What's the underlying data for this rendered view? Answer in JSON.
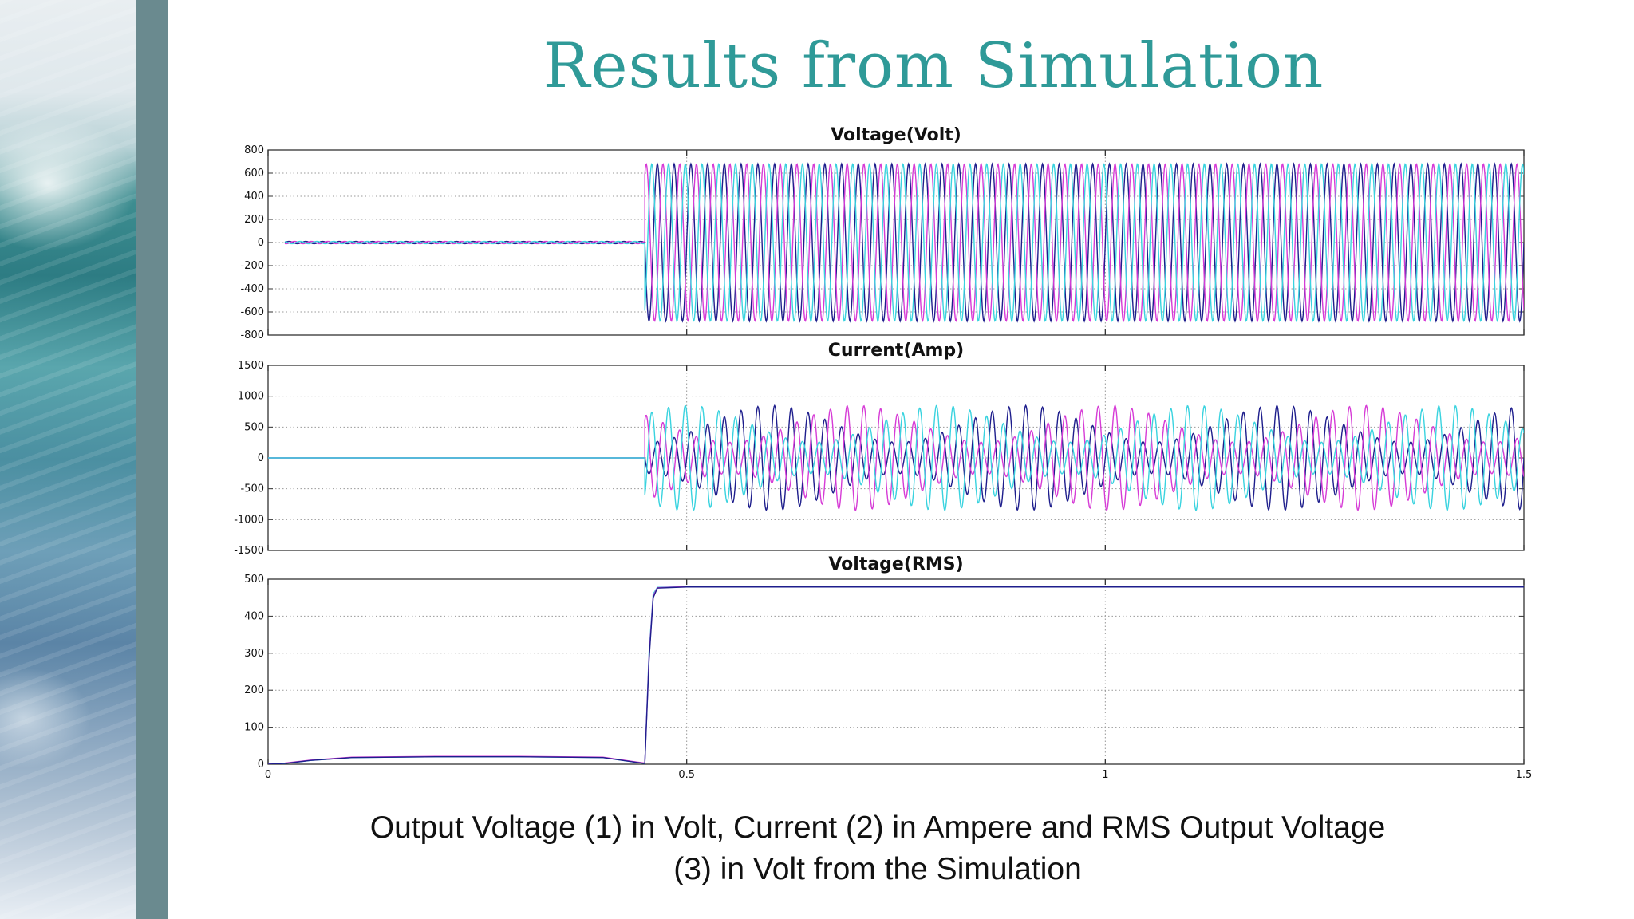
{
  "slide": {
    "title": "Results from Simulation",
    "caption_line1": "Output Voltage (1) in Volt, Current (2) in Ampere and RMS Output Voltage",
    "caption_line2": "(3) in Volt from the Simulation"
  },
  "colors": {
    "title": "#2f9a98",
    "phase_a": "#1e1e8c",
    "phase_b": "#d63bd6",
    "phase_c": "#39d3df"
  },
  "chart_data": [
    {
      "type": "line",
      "title": "Voltage(Volt)",
      "xlim": [
        0,
        1.5
      ],
      "ylim": [
        -800,
        800
      ],
      "x_ticks": [
        0,
        0.5,
        1,
        1.5
      ],
      "y_ticks": [
        800,
        600,
        400,
        200,
        0,
        -200,
        -400,
        -600,
        -800
      ],
      "y_tick_labels": [
        "800",
        "600",
        "400",
        "200",
        "0",
        "-200",
        "-400",
        "-600",
        "-800"
      ],
      "x_grid": [
        0.5,
        1
      ],
      "grid": true,
      "series": [
        {
          "color": "#1e1e8c",
          "segments": [
            {
              "x_start": 0.02,
              "x_end": 0.45,
              "amplitude": 10,
              "frequency": 50,
              "phase_deg": 0
            },
            {
              "x_start": 0.45,
              "x_end": 1.5,
              "amplitude": 680,
              "frequency": 50,
              "phase_deg": 0
            }
          ]
        },
        {
          "color": "#d63bd6",
          "segments": [
            {
              "x_start": 0.02,
              "x_end": 0.45,
              "amplitude": 10,
              "frequency": 50,
              "phase_deg": -120
            },
            {
              "x_start": 0.45,
              "x_end": 1.5,
              "amplitude": 680,
              "frequency": 50,
              "phase_deg": -120
            }
          ]
        },
        {
          "color": "#39d3df",
          "segments": [
            {
              "x_start": 0.02,
              "x_end": 0.45,
              "amplitude": 10,
              "frequency": 50,
              "phase_deg": 120
            },
            {
              "x_start": 0.45,
              "x_end": 1.5,
              "amplitude": 680,
              "frequency": 50,
              "phase_deg": 120
            }
          ]
        }
      ]
    },
    {
      "type": "line",
      "title": "Current(Amp)",
      "xlim": [
        0,
        1.5
      ],
      "ylim": [
        -1500,
        1500
      ],
      "x_ticks": [
        0,
        0.5,
        1,
        1.5
      ],
      "y_ticks": [
        1500,
        1000,
        500,
        0,
        -500,
        -1000,
        -1500
      ],
      "y_tick_labels": [
        "1500",
        "1000",
        "500",
        "0",
        "-500",
        "-1000",
        "-1500"
      ],
      "x_grid": [
        0.5,
        1
      ],
      "grid": true,
      "series": [
        {
          "color": "#1e1e8c",
          "segments": [
            {
              "x_start": 0,
              "x_end": 0.45,
              "amplitude": 0,
              "frequency": 50,
              "phase_deg": 0
            },
            {
              "x_start": 0.45,
              "x_end": 1.5,
              "amplitude": 850,
              "frequency": 50,
              "phase_deg": 0,
              "beat_frequency": 3.3,
              "beat_depth": 0.7
            }
          ]
        },
        {
          "color": "#d63bd6",
          "segments": [
            {
              "x_start": 0,
              "x_end": 0.45,
              "amplitude": 0,
              "frequency": 50,
              "phase_deg": -120
            },
            {
              "x_start": 0.45,
              "x_end": 1.5,
              "amplitude": 850,
              "frequency": 50,
              "phase_deg": -120,
              "beat_frequency": 3.3,
              "beat_depth": 0.7
            }
          ]
        },
        {
          "color": "#39d3df",
          "segments": [
            {
              "x_start": 0,
              "x_end": 0.45,
              "amplitude": 0,
              "frequency": 50,
              "phase_deg": 120
            },
            {
              "x_start": 0.45,
              "x_end": 1.5,
              "amplitude": 850,
              "frequency": 50,
              "phase_deg": 120,
              "beat_frequency": 3.3,
              "beat_depth": 0.7
            }
          ]
        }
      ]
    },
    {
      "type": "line",
      "title": "Voltage(RMS)",
      "xlim": [
        0,
        1.5
      ],
      "ylim": [
        0,
        500
      ],
      "x_ticks": [
        0,
        0.5,
        1,
        1.5
      ],
      "x_tick_labels": [
        "0",
        "0.5",
        "1",
        "1.5"
      ],
      "y_ticks": [
        500,
        400,
        300,
        200,
        100,
        0
      ],
      "y_tick_labels": [
        "500",
        "400",
        "300",
        "200",
        "100",
        "0"
      ],
      "x_grid": [
        0.5,
        1
      ],
      "grid": true,
      "series": [
        {
          "color": "#39d3df",
          "points": [
            [
              0,
              0
            ],
            [
              0.02,
              2
            ],
            [
              0.05,
              10
            ],
            [
              0.1,
              18
            ],
            [
              0.2,
              20
            ],
            [
              0.3,
              20
            ],
            [
              0.4,
              18
            ],
            [
              0.44,
              5
            ],
            [
              0.45,
              2
            ],
            [
              0.455,
              300
            ],
            [
              0.46,
              460
            ],
            [
              0.465,
              478
            ],
            [
              0.5,
              480
            ],
            [
              1.5,
              480
            ]
          ]
        },
        {
          "color": "#d63bd6",
          "points": [
            [
              0,
              0
            ],
            [
              0.02,
              3
            ],
            [
              0.05,
              11
            ],
            [
              0.1,
              19
            ],
            [
              0.2,
              21
            ],
            [
              0.3,
              21
            ],
            [
              0.4,
              19
            ],
            [
              0.44,
              6
            ],
            [
              0.45,
              3
            ],
            [
              0.455,
              290
            ],
            [
              0.46,
              455
            ],
            [
              0.465,
              477
            ],
            [
              0.5,
              480
            ],
            [
              1.5,
              480
            ]
          ]
        },
        {
          "color": "#1e1e8c",
          "points": [
            [
              0,
              0
            ],
            [
              0.02,
              2
            ],
            [
              0.05,
              10
            ],
            [
              0.1,
              18
            ],
            [
              0.2,
              20
            ],
            [
              0.3,
              20
            ],
            [
              0.4,
              18
            ],
            [
              0.44,
              5
            ],
            [
              0.45,
              2
            ],
            [
              0.455,
              280
            ],
            [
              0.46,
              450
            ],
            [
              0.465,
              476
            ],
            [
              0.5,
              479
            ],
            [
              1.5,
              479
            ]
          ]
        }
      ]
    }
  ]
}
